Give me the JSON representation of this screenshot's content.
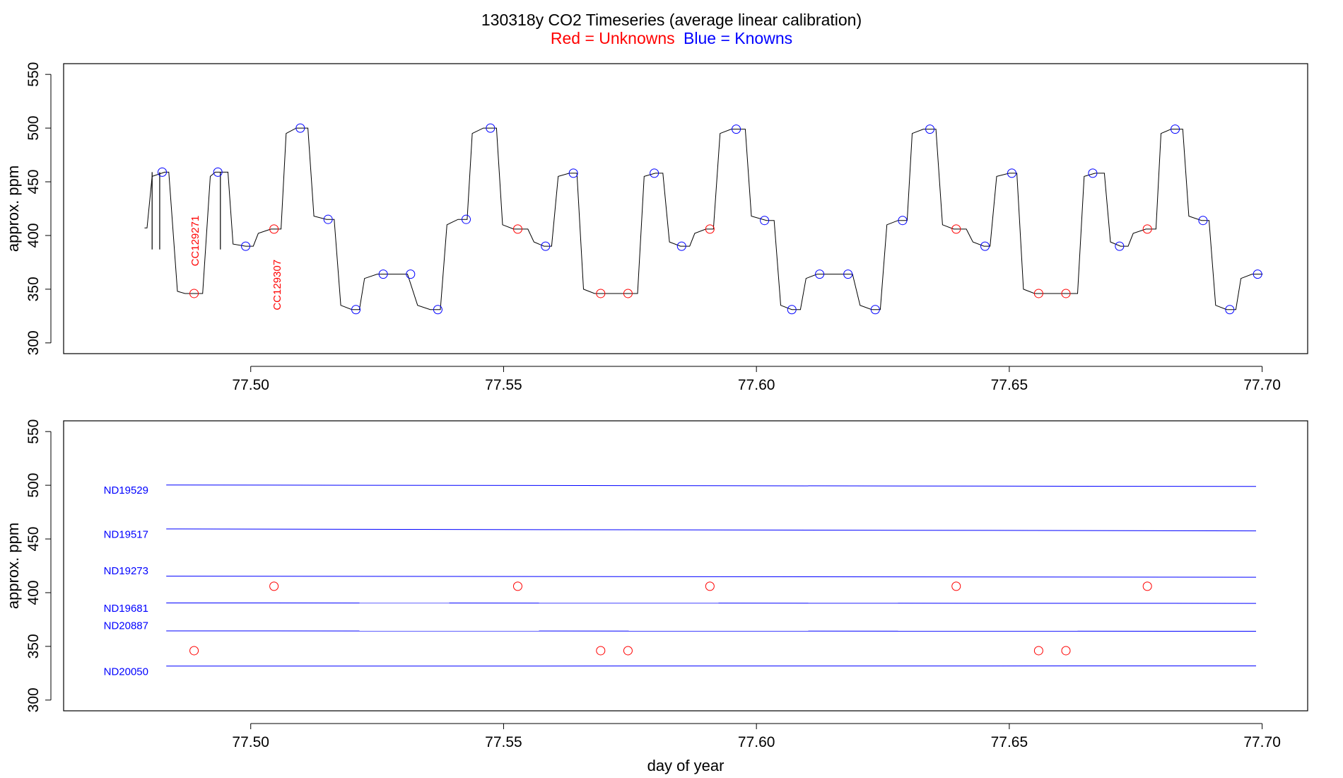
{
  "header": {
    "title": "130318y   CO2 Timeseries (average linear calibration)",
    "legend_red": "Red = Unknowns",
    "legend_blue": "Blue = Knowns"
  },
  "colors": {
    "red": "#ff0000",
    "blue": "#0000ff",
    "black": "#000000"
  },
  "chart_data": [
    {
      "type": "line",
      "panel": "top",
      "ylabel": "approx. ppm",
      "xlim": [
        77.463,
        77.709
      ],
      "ylim": [
        290,
        560
      ],
      "xticks": [
        "77.50",
        "77.55",
        "77.60",
        "77.65",
        "77.70"
      ],
      "yticks": [
        "300",
        "350",
        "400",
        "450",
        "500",
        "550"
      ],
      "grid": false,
      "trace": [
        [
          77.479,
          407
        ],
        [
          77.4795,
          407
        ],
        [
          77.4805,
          455
        ],
        [
          77.483,
          459
        ],
        [
          77.4838,
          459
        ],
        [
          77.4855,
          348
        ],
        [
          77.487,
          346
        ],
        [
          77.4905,
          346
        ],
        [
          77.492,
          455
        ],
        [
          77.493,
          459
        ],
        [
          77.4955,
          459
        ],
        [
          77.4965,
          392
        ],
        [
          77.499,
          390
        ],
        [
          77.5005,
          390
        ],
        [
          77.5015,
          402
        ],
        [
          77.504,
          406
        ],
        [
          77.506,
          406
        ],
        [
          77.507,
          495
        ],
        [
          77.509,
          500
        ],
        [
          77.5113,
          500
        ],
        [
          77.5125,
          418
        ],
        [
          77.515,
          415
        ],
        [
          77.5165,
          415
        ],
        [
          77.5178,
          335
        ],
        [
          77.52,
          331
        ],
        [
          77.5215,
          331
        ],
        [
          77.5225,
          360
        ],
        [
          77.525,
          364
        ],
        [
          77.531,
          364
        ],
        [
          77.533,
          335
        ],
        [
          77.5355,
          331
        ],
        [
          77.5375,
          331
        ],
        [
          77.5388,
          410
        ],
        [
          77.541,
          415
        ],
        [
          77.5428,
          415
        ],
        [
          77.5438,
          495
        ],
        [
          77.546,
          500
        ],
        [
          77.5486,
          500
        ],
        [
          77.5498,
          410
        ],
        [
          77.552,
          406
        ],
        [
          77.5548,
          406
        ],
        [
          77.556,
          394
        ],
        [
          77.558,
          390
        ],
        [
          77.5595,
          390
        ],
        [
          77.5608,
          455
        ],
        [
          77.563,
          458
        ],
        [
          77.5645,
          458
        ],
        [
          77.5658,
          350
        ],
        [
          77.568,
          346
        ],
        [
          77.5765,
          346
        ],
        [
          77.5778,
          455
        ],
        [
          77.58,
          458
        ],
        [
          77.5815,
          458
        ],
        [
          77.5828,
          394
        ],
        [
          77.585,
          390
        ],
        [
          77.5868,
          390
        ],
        [
          77.5878,
          402
        ],
        [
          77.59,
          406
        ],
        [
          77.5915,
          406
        ],
        [
          77.5928,
          495
        ],
        [
          77.595,
          499
        ],
        [
          77.5978,
          499
        ],
        [
          77.599,
          418
        ],
        [
          77.602,
          414
        ],
        [
          77.6035,
          414
        ],
        [
          77.6048,
          335
        ],
        [
          77.607,
          331
        ],
        [
          77.6087,
          331
        ],
        [
          77.6098,
          360
        ],
        [
          77.612,
          364
        ],
        [
          77.619,
          364
        ],
        [
          77.6205,
          335
        ],
        [
          77.6228,
          331
        ],
        [
          77.6245,
          331
        ],
        [
          77.6258,
          410
        ],
        [
          77.628,
          414
        ],
        [
          77.6298,
          414
        ],
        [
          77.6308,
          495
        ],
        [
          77.633,
          499
        ],
        [
          77.6355,
          499
        ],
        [
          77.6368,
          410
        ],
        [
          77.639,
          406
        ],
        [
          77.6415,
          406
        ],
        [
          77.6428,
          394
        ],
        [
          77.645,
          390
        ],
        [
          77.6462,
          390
        ],
        [
          77.6475,
          455
        ],
        [
          77.65,
          458
        ],
        [
          77.6515,
          458
        ],
        [
          77.6528,
          350
        ],
        [
          77.655,
          346
        ],
        [
          77.6635,
          346
        ],
        [
          77.6648,
          455
        ],
        [
          77.667,
          458
        ],
        [
          77.6688,
          458
        ],
        [
          77.67,
          394
        ],
        [
          77.672,
          390
        ],
        [
          77.6735,
          390
        ],
        [
          77.6745,
          402
        ],
        [
          77.677,
          406
        ],
        [
          77.679,
          406
        ],
        [
          77.68,
          495
        ],
        [
          77.682,
          499
        ],
        [
          77.6843,
          499
        ],
        [
          77.6855,
          418
        ],
        [
          77.688,
          414
        ],
        [
          77.6895,
          414
        ],
        [
          77.6908,
          335
        ],
        [
          77.693,
          331
        ],
        [
          77.6948,
          331
        ],
        [
          77.6958,
          360
        ],
        [
          77.698,
          364
        ],
        [
          77.7001,
          364
        ]
      ],
      "spikes": [
        {
          "x": 77.4805,
          "y_low": 387,
          "y_high": 459
        },
        {
          "x": 77.482,
          "y_low": 387,
          "y_high": 459
        },
        {
          "x": 77.494,
          "y_low": 387,
          "y_high": 459
        }
      ],
      "knowns": [
        [
          77.4825,
          459
        ],
        [
          77.4935,
          459
        ],
        [
          77.499,
          390
        ],
        [
          77.5098,
          500
        ],
        [
          77.5153,
          415
        ],
        [
          77.5208,
          331
        ],
        [
          77.5262,
          364
        ],
        [
          77.5316,
          364
        ],
        [
          77.537,
          331
        ],
        [
          77.5426,
          415
        ],
        [
          77.5474,
          500
        ],
        [
          77.5583,
          390
        ],
        [
          77.5638,
          458
        ],
        [
          77.5798,
          458
        ],
        [
          77.5852,
          390
        ],
        [
          77.596,
          499
        ],
        [
          77.6016,
          414
        ],
        [
          77.607,
          331
        ],
        [
          77.6125,
          364
        ],
        [
          77.6181,
          364
        ],
        [
          77.6235,
          331
        ],
        [
          77.6289,
          414
        ],
        [
          77.6343,
          499
        ],
        [
          77.6452,
          390
        ],
        [
          77.6505,
          458
        ],
        [
          77.6665,
          458
        ],
        [
          77.6718,
          390
        ],
        [
          77.6828,
          499
        ],
        [
          77.6883,
          414
        ],
        [
          77.6936,
          331
        ],
        [
          77.6991,
          364
        ]
      ],
      "unknowns": [
        [
          77.4888,
          346
        ],
        [
          77.5046,
          406
        ],
        [
          77.5528,
          406
        ],
        [
          77.5692,
          346
        ],
        [
          77.5746,
          346
        ],
        [
          77.5908,
          406
        ],
        [
          77.6395,
          406
        ],
        [
          77.6558,
          346
        ],
        [
          77.6612,
          346
        ],
        [
          77.6773,
          406
        ]
      ],
      "annotations": [
        {
          "text": "CC129271",
          "x": 77.489,
          "y": 395
        },
        {
          "text": "CC129307",
          "x": 77.5052,
          "y": 354
        }
      ]
    },
    {
      "type": "line",
      "panel": "bottom",
      "xlabel": "day of year",
      "ylabel": "approx. ppm",
      "xlim": [
        77.463,
        77.709
      ],
      "ylim": [
        290,
        560
      ],
      "xticks": [
        "77.50",
        "77.55",
        "77.60",
        "77.65",
        "77.70"
      ],
      "yticks": [
        "300",
        "350",
        "400",
        "450",
        "500",
        "550"
      ],
      "grid": false,
      "series": [
        {
          "name": "ND19529",
          "x": [
            77.4833,
            77.6988
          ],
          "y": [
            500.3,
            498.9
          ]
        },
        {
          "name": "ND19517",
          "x": [
            77.4833,
            77.6988
          ],
          "y": [
            459.3,
            457.5
          ]
        },
        {
          "name": "ND19273",
          "x": [
            77.4833,
            77.6988
          ],
          "y": [
            415.4,
            414.4
          ]
        },
        {
          "name": "ND19681",
          "x": [
            77.4833,
            77.6988
          ],
          "y": [
            390.4,
            390.0
          ]
        },
        {
          "name": "ND20887",
          "x": [
            77.4833,
            77.6988
          ],
          "y": [
            364.4,
            364.1
          ]
        },
        {
          "name": "ND20050",
          "x": [
            77.4833,
            77.6988
          ],
          "y": [
            331.6,
            331.8
          ]
        }
      ],
      "label_offsets_ppm": [
        -5,
        -5,
        5,
        -5,
        5,
        -5
      ],
      "unknowns": [
        [
          77.4888,
          346
        ],
        [
          77.5046,
          406
        ],
        [
          77.5528,
          406
        ],
        [
          77.5692,
          346
        ],
        [
          77.5746,
          346
        ],
        [
          77.5908,
          406
        ],
        [
          77.6395,
          406
        ],
        [
          77.6558,
          346
        ],
        [
          77.6612,
          346
        ],
        [
          77.6773,
          406
        ]
      ]
    }
  ]
}
